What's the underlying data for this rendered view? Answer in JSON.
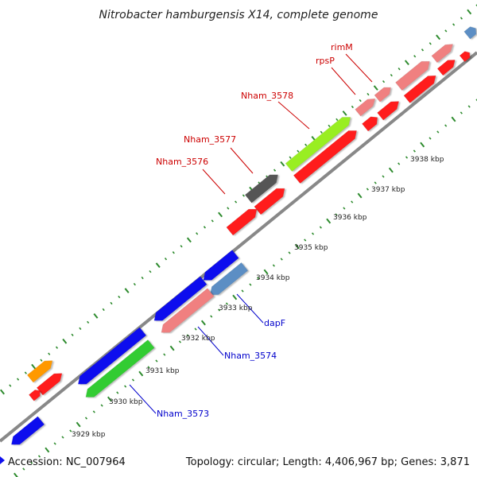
{
  "title": "Nitrobacter hamburgensis X14, complete genome",
  "footer": {
    "accession": "Accession: NC_007964",
    "summary": "Topology: circular; Length: 4,406,967 bp; Genes: 3,871"
  },
  "scale_labels": [
    "3929 kbp",
    "3930 kbp",
    "3931 kbp",
    "3932 kbp",
    "3933 kbp",
    "3934 kbp",
    "3935 kbp",
    "3936 kbp",
    "3937 kbp",
    "3938 kbp"
  ],
  "gene_labels": {
    "forward": [
      "Nham_3576",
      "Nham_3577",
      "Nham_3578",
      "rpsP",
      "rimM"
    ],
    "reverse": [
      "Nham_3573",
      "Nham_3574",
      "dapF"
    ]
  },
  "colors": {
    "backbone": "#888888",
    "tick": "#2e8b2e",
    "forward_label": "#cc0000",
    "reverse_label": "#0000cc",
    "cds_red": "#ff1a1a",
    "cds_pink": "#f08080",
    "cds_blue": "#1010ee",
    "cds_steel": "#5b8ec4",
    "cds_green": "#33cc33",
    "cds_lime": "#99ee22",
    "cds_gray": "#555555",
    "cds_orange": "#ff9900"
  }
}
